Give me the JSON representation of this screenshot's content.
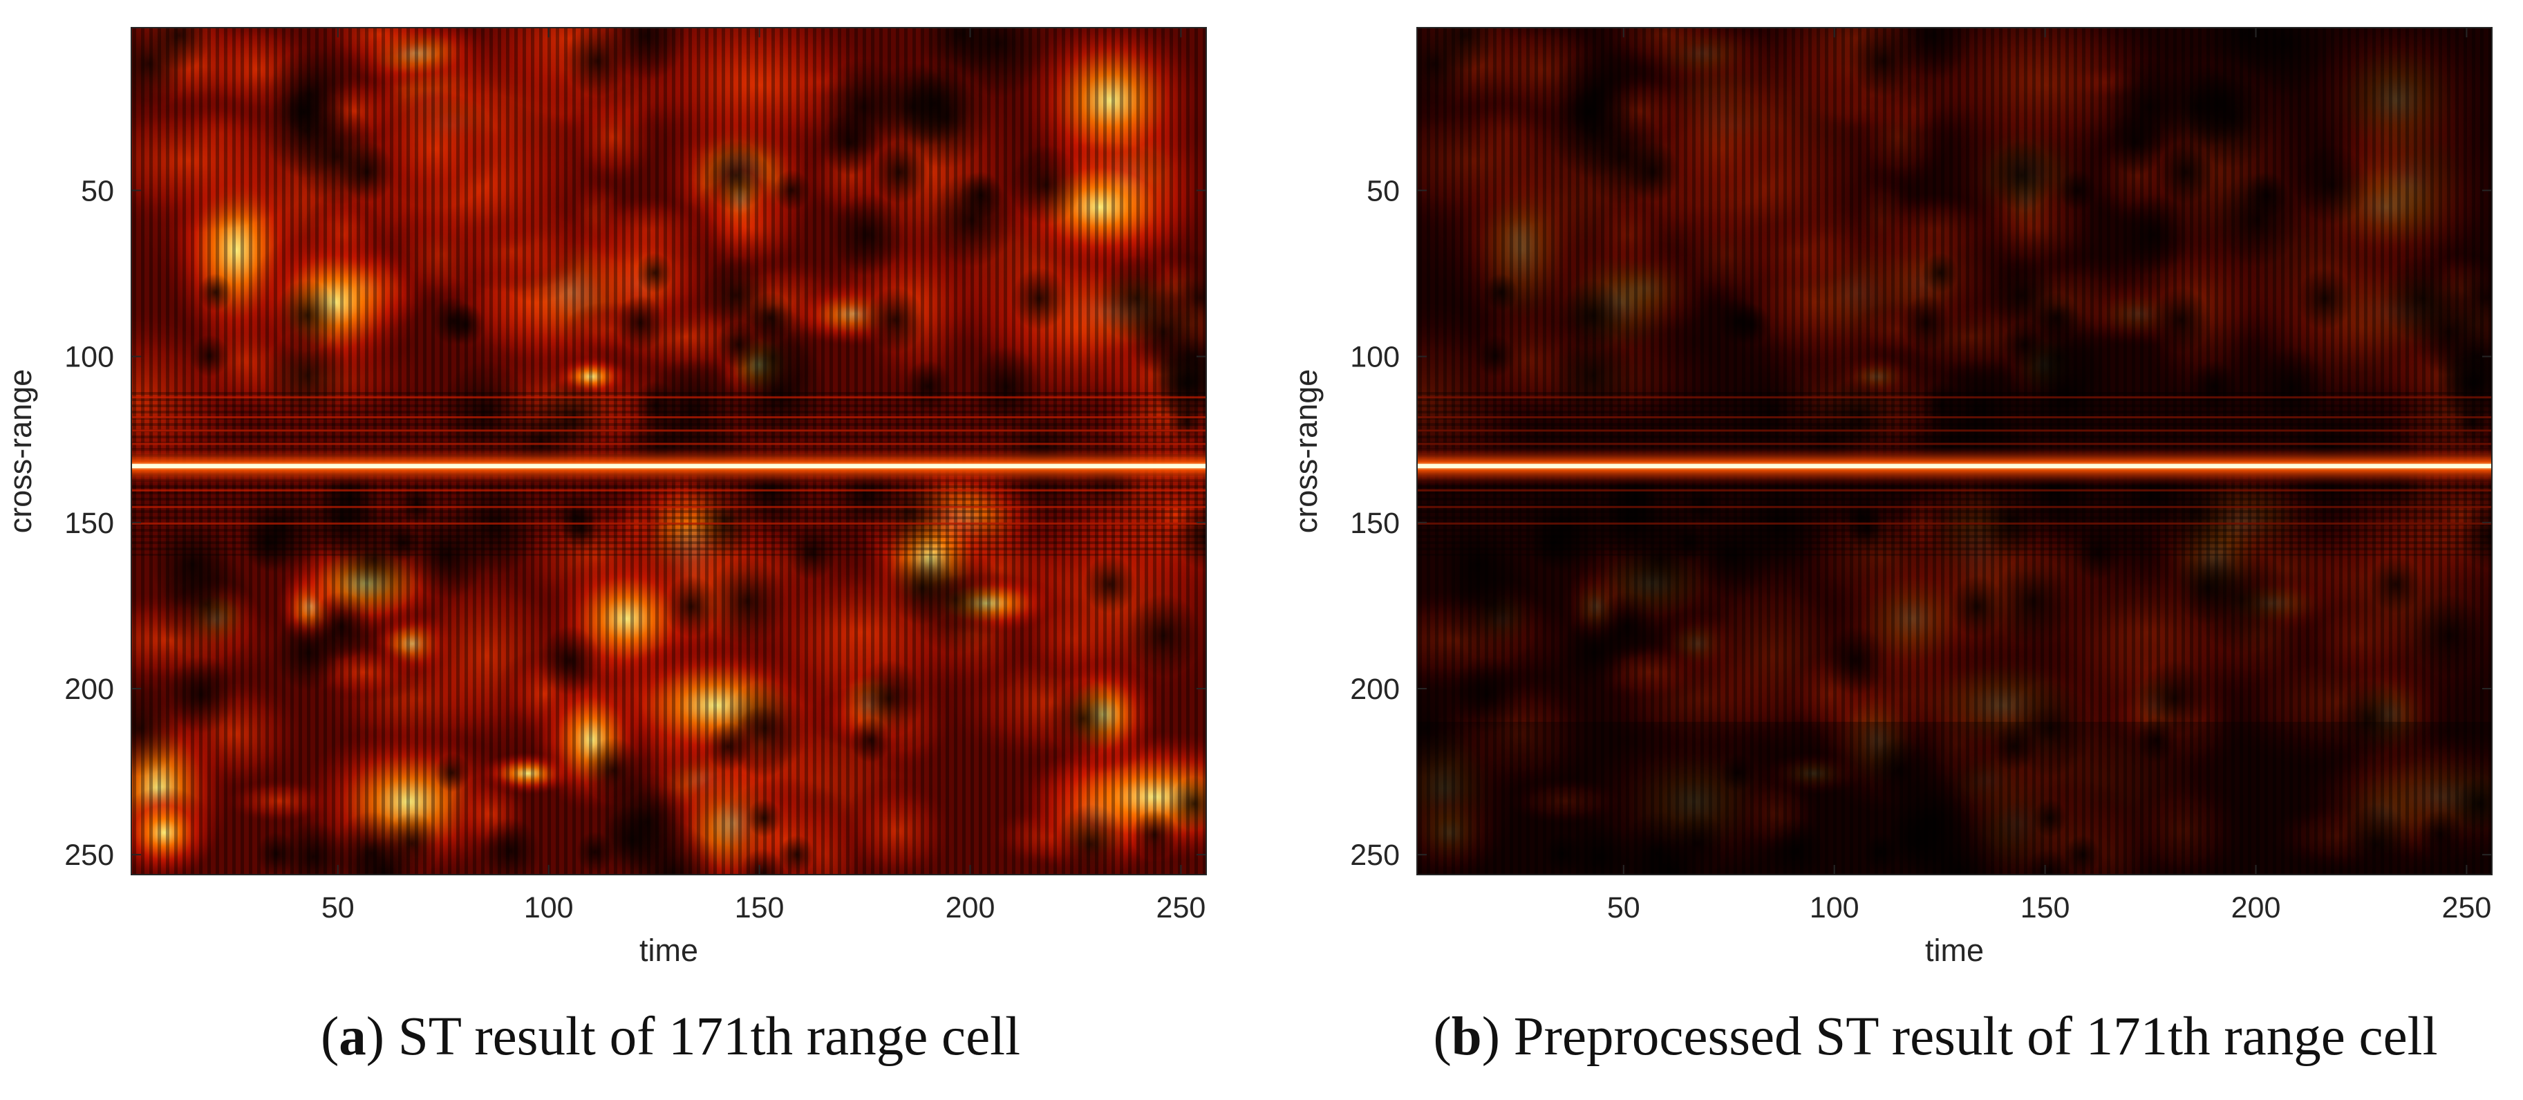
{
  "chart_data": [
    {
      "type": "heatmap",
      "panel": "a",
      "title": "",
      "caption_letter": "a",
      "caption_text": "ST result of 171th range cell",
      "xlabel": "time",
      "ylabel": "cross-range",
      "xlim": [
        1,
        256
      ],
      "ylim": [
        1,
        256
      ],
      "y_reversed": true,
      "x_ticks": [
        50,
        100,
        150,
        200,
        250
      ],
      "y_ticks": [
        50,
        100,
        150,
        200,
        250
      ],
      "colormap": "hot",
      "strong_horizontal_line_at": 133,
      "intensity_scale": 1.0
    },
    {
      "type": "heatmap",
      "panel": "b",
      "title": "",
      "caption_letter": "b",
      "caption_text": "Preprocessed ST result of 171th range cell",
      "xlabel": "time",
      "ylabel": "cross-range",
      "xlim": [
        1,
        256
      ],
      "ylim": [
        1,
        256
      ],
      "y_reversed": true,
      "x_ticks": [
        50,
        100,
        150,
        200,
        250
      ],
      "y_ticks": [
        50,
        100,
        150,
        200,
        250
      ],
      "colormap": "hot",
      "strong_horizontal_line_at": 133,
      "intensity_scale": 0.45
    }
  ],
  "colors": {
    "hot_dark": "#000000",
    "hot_red": "#cc1100",
    "hot_orange": "#ff6600",
    "hot_yellow": "#ffff99",
    "axis": "#262626"
  },
  "captions": {
    "a": {
      "open": "(",
      "letter": "a",
      "close": ")",
      "text": "ST result of 171th range cell"
    },
    "b": {
      "open": "(",
      "letter": "b",
      "close": ")",
      "text": "Preprocessed ST result of 171th range cell"
    }
  }
}
